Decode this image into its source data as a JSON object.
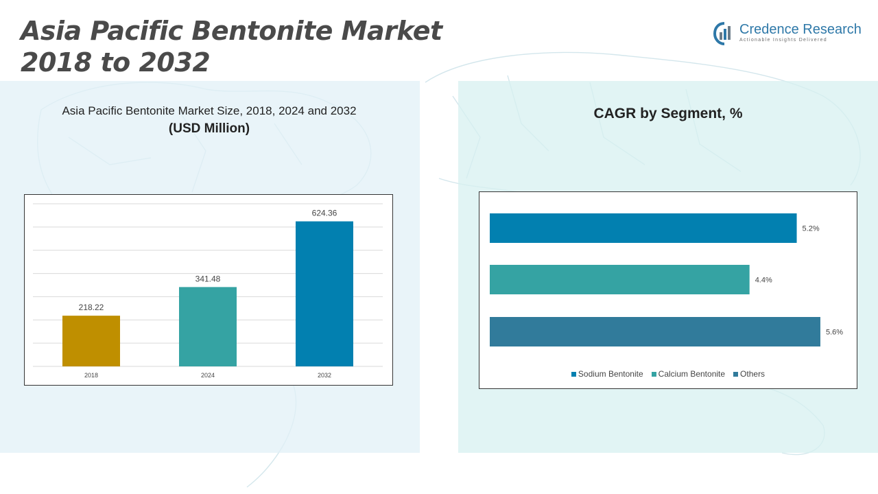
{
  "header": {
    "title_line1": "Asia Pacific Bentonite Market",
    "title_line2": "2018 to 2032"
  },
  "logo": {
    "name": "Credence Research",
    "tagline": "Actionable Insights Delivered",
    "icon": "credence-logo-icon",
    "color": "#2e78a8"
  },
  "left_panel": {
    "subtitle": "Asia Pacific Bentonite Market Size, 2018, 2024 and 2032",
    "unit": "(USD Million)"
  },
  "right_panel": {
    "title": "CAGR by Segment, %"
  },
  "chart_data": [
    {
      "type": "bar",
      "categories": [
        "2018",
        "2024",
        "2032"
      ],
      "values": [
        218.22,
        341.48,
        624.36
      ],
      "value_labels": [
        "218.22",
        "341.48",
        "624.36"
      ],
      "colors": [
        "#bf8f00",
        "#35a3a3",
        "#0280b0"
      ],
      "title": "Asia Pacific Bentonite Market Size, 2018, 2024 and 2032",
      "ylabel": "(USD Million)",
      "ylim": [
        0,
        700
      ],
      "grid": true
    },
    {
      "type": "bar",
      "orientation": "horizontal",
      "series": [
        {
          "name": "Sodium Bentonite",
          "value": 5.2,
          "label": "5.2%",
          "color": "#0280b0"
        },
        {
          "name": "Calcium Bentonite",
          "value": 4.4,
          "label": "4.4%",
          "color": "#35a3a3"
        },
        {
          "name": "Others",
          "value": 5.6,
          "label": "5.6%",
          "color": "#317b9b"
        }
      ],
      "title": "CAGR by Segment, %",
      "xlim": [
        0,
        6.1
      ],
      "legend": "bottom",
      "grid": false
    }
  ]
}
